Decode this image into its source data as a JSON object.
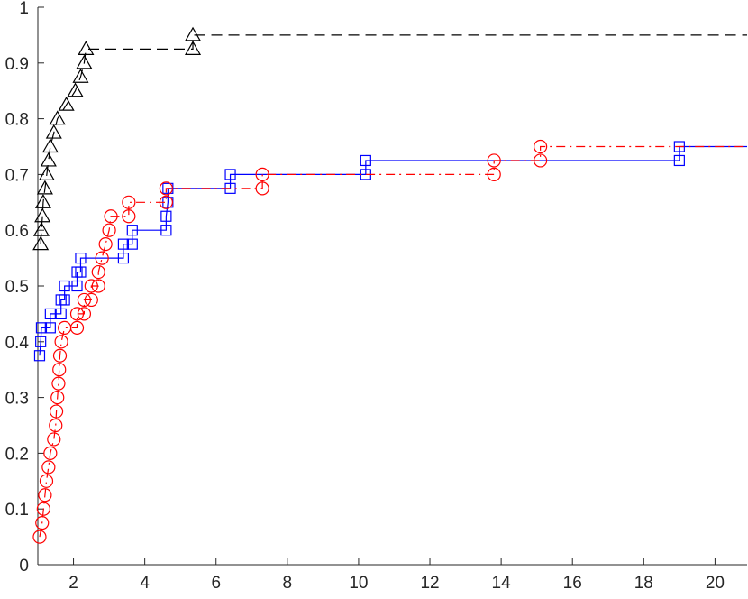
{
  "chart_data": {
    "type": "line",
    "title": "",
    "xlabel": "",
    "ylabel": "",
    "xlim": [
      1,
      20.9
    ],
    "ylim": [
      0,
      1
    ],
    "xticks": [
      2,
      4,
      6,
      8,
      10,
      12,
      14,
      16,
      18,
      20
    ],
    "yticks": [
      0,
      0.1,
      0.2,
      0.3,
      0.4,
      0.5,
      0.6,
      0.7,
      0.8,
      0.9,
      1
    ],
    "xtick_labels": [
      "2",
      "4",
      "6",
      "8",
      "10",
      "12",
      "14",
      "16",
      "18",
      "20"
    ],
    "ytick_labels": [
      "0",
      "0.1",
      "0.2",
      "0.3",
      "0.4",
      "0.5",
      "0.6",
      "0.7",
      "0.8",
      "0.9",
      "1"
    ],
    "grid": false,
    "legend": "none",
    "series": [
      {
        "color": "#000000",
        "marker": "triangle",
        "line_style": "dashed",
        "points": [
          [
            1.08,
            0.575
          ],
          [
            1.1,
            0.6
          ],
          [
            1.13,
            0.625
          ],
          [
            1.15,
            0.65
          ],
          [
            1.2,
            0.675
          ],
          [
            1.25,
            0.7
          ],
          [
            1.3,
            0.725
          ],
          [
            1.35,
            0.75
          ],
          [
            1.45,
            0.775
          ],
          [
            1.55,
            0.8
          ],
          [
            1.8,
            0.825
          ],
          [
            2.05,
            0.85
          ],
          [
            2.2,
            0.875
          ],
          [
            2.3,
            0.9
          ],
          [
            2.35,
            0.925
          ],
          [
            5.35,
            0.925
          ],
          [
            5.35,
            0.95
          ],
          [
            20.9,
            0.95
          ]
        ]
      },
      {
        "color": "#0000ff",
        "marker": "square",
        "line_style": "solid",
        "points": [
          [
            1.05,
            0.375
          ],
          [
            1.08,
            0.4
          ],
          [
            1.1,
            0.425
          ],
          [
            1.35,
            0.425
          ],
          [
            1.35,
            0.45
          ],
          [
            1.65,
            0.45
          ],
          [
            1.65,
            0.475
          ],
          [
            1.75,
            0.475
          ],
          [
            1.75,
            0.5
          ],
          [
            2.1,
            0.5
          ],
          [
            2.1,
            0.525
          ],
          [
            2.2,
            0.525
          ],
          [
            2.2,
            0.55
          ],
          [
            3.4,
            0.55
          ],
          [
            3.4,
            0.575
          ],
          [
            3.65,
            0.575
          ],
          [
            3.65,
            0.6
          ],
          [
            4.6,
            0.6
          ],
          [
            4.6,
            0.625
          ],
          [
            4.65,
            0.65
          ],
          [
            4.65,
            0.675
          ],
          [
            6.4,
            0.675
          ],
          [
            6.4,
            0.7
          ],
          [
            10.2,
            0.7
          ],
          [
            10.2,
            0.725
          ],
          [
            19,
            0.725
          ],
          [
            19,
            0.75
          ],
          [
            20.9,
            0.75
          ]
        ]
      },
      {
        "color": "#ff0000",
        "marker": "circle",
        "line_style": "dash-dot",
        "points": [
          [
            1.05,
            0.05
          ],
          [
            1.12,
            0.075
          ],
          [
            1.16,
            0.1
          ],
          [
            1.2,
            0.125
          ],
          [
            1.24,
            0.15
          ],
          [
            1.3,
            0.175
          ],
          [
            1.35,
            0.2
          ],
          [
            1.45,
            0.225
          ],
          [
            1.5,
            0.25
          ],
          [
            1.52,
            0.275
          ],
          [
            1.55,
            0.3
          ],
          [
            1.58,
            0.325
          ],
          [
            1.6,
            0.35
          ],
          [
            1.62,
            0.375
          ],
          [
            1.66,
            0.4
          ],
          [
            1.75,
            0.425
          ],
          [
            2.1,
            0.425
          ],
          [
            2.1,
            0.45
          ],
          [
            2.3,
            0.45
          ],
          [
            2.3,
            0.475
          ],
          [
            2.5,
            0.475
          ],
          [
            2.5,
            0.5
          ],
          [
            2.7,
            0.5
          ],
          [
            2.7,
            0.525
          ],
          [
            2.8,
            0.55
          ],
          [
            2.9,
            0.575
          ],
          [
            3.0,
            0.6
          ],
          [
            3.05,
            0.625
          ],
          [
            3.55,
            0.625
          ],
          [
            3.55,
            0.65
          ],
          [
            4.6,
            0.65
          ],
          [
            4.6,
            0.675
          ],
          [
            7.3,
            0.675
          ],
          [
            7.3,
            0.7
          ],
          [
            13.8,
            0.7
          ],
          [
            13.8,
            0.725
          ],
          [
            15.1,
            0.725
          ],
          [
            15.1,
            0.75
          ],
          [
            20.9,
            0.75
          ]
        ]
      }
    ]
  }
}
